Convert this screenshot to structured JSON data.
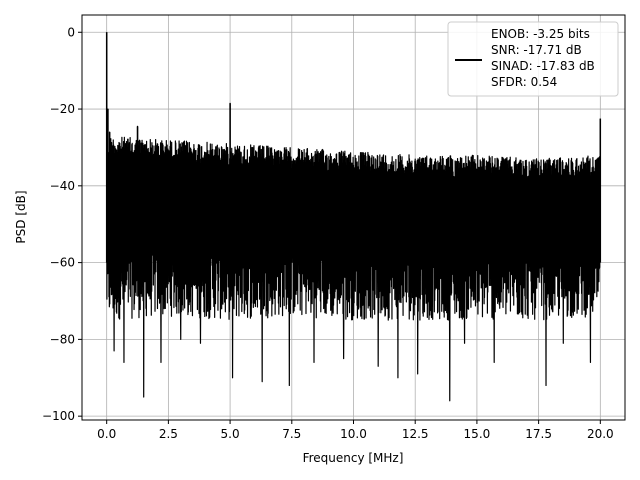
{
  "chart_data": {
    "type": "line",
    "title": "",
    "xlabel": "Frequency [MHz]",
    "ylabel": "PSD [dB]",
    "xlim": [
      -1.0,
      21.0
    ],
    "ylim": [
      -101.0,
      4.5
    ],
    "x_ticks": [
      0.0,
      2.5,
      5.0,
      7.5,
      10.0,
      12.5,
      15.0,
      17.5,
      20.0
    ],
    "x_tick_labels": [
      "0.0",
      "2.5",
      "5.0",
      "7.5",
      "10.0",
      "12.5",
      "15.0",
      "17.5",
      "20.0"
    ],
    "y_ticks": [
      0,
      -20,
      -40,
      -60,
      -80,
      -100
    ],
    "y_tick_labels": [
      "0",
      "−20",
      "−40",
      "−60",
      "−80",
      "−100"
    ],
    "grid": true,
    "legend_position": "top-right",
    "legend_entries": [
      "ENOB: -3.25 bits",
      "SNR: -17.71 dB",
      "SINAD: -17.83 dB",
      "SFDR: 0.54"
    ],
    "series": [
      {
        "color": "#000000",
        "noise_floor": {
          "x_range": [
            0.0,
            20.0
          ],
          "upper_envelope": [
            [
              0.0,
              -27
            ],
            [
              2.5,
              -28
            ],
            [
              5.0,
              -29
            ],
            [
              7.5,
              -30
            ],
            [
              10.0,
              -31
            ],
            [
              12.5,
              -32
            ],
            [
              15.0,
              -32
            ],
            [
              17.5,
              -33
            ],
            [
              20.0,
              -32
            ]
          ],
          "lower_envelope": [
            [
              0.0,
              -75
            ],
            [
              2.5,
              -74
            ],
            [
              5.0,
              -75
            ],
            [
              7.5,
              -74
            ],
            [
              10.0,
              -75
            ],
            [
              12.5,
              -75
            ],
            [
              15.0,
              -75
            ],
            [
              17.5,
              -75
            ],
            [
              20.0,
              -74
            ]
          ]
        },
        "spikes": [
          {
            "x": 0.0,
            "y": 0.0
          },
          {
            "x": 0.05,
            "y": -20.0
          },
          {
            "x": 0.12,
            "y": -26.0
          },
          {
            "x": 1.25,
            "y": -24.5
          },
          {
            "x": 5.0,
            "y": -18.5
          },
          {
            "x": 20.0,
            "y": -22.5
          }
        ],
        "dips": [
          {
            "x": 0.3,
            "y": -83
          },
          {
            "x": 0.7,
            "y": -86
          },
          {
            "x": 1.5,
            "y": -95
          },
          {
            "x": 2.2,
            "y": -86
          },
          {
            "x": 3.0,
            "y": -80
          },
          {
            "x": 3.8,
            "y": -81
          },
          {
            "x": 5.1,
            "y": -90
          },
          {
            "x": 6.3,
            "y": -91
          },
          {
            "x": 7.4,
            "y": -92
          },
          {
            "x": 8.4,
            "y": -86
          },
          {
            "x": 9.6,
            "y": -85
          },
          {
            "x": 11.0,
            "y": -87
          },
          {
            "x": 11.8,
            "y": -90
          },
          {
            "x": 12.6,
            "y": -89
          },
          {
            "x": 13.9,
            "y": -96
          },
          {
            "x": 14.5,
            "y": -81
          },
          {
            "x": 15.7,
            "y": -86
          },
          {
            "x": 17.8,
            "y": -92
          },
          {
            "x": 18.5,
            "y": -81
          },
          {
            "x": 19.6,
            "y": -86
          }
        ]
      }
    ]
  }
}
